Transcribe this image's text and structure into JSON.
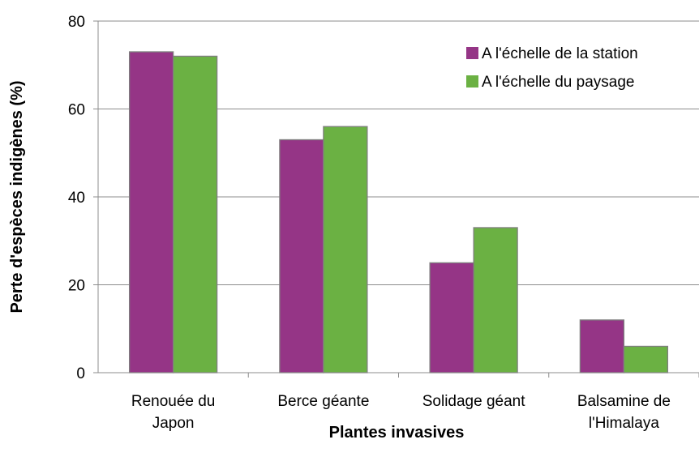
{
  "chart_data": {
    "type": "bar",
    "categories": [
      [
        "Renouée du",
        "Japon"
      ],
      [
        "Berce géante"
      ],
      [
        "Solidage géant"
      ],
      [
        "Balsamine de",
        "l'Himalaya"
      ]
    ],
    "series": [
      {
        "name": "A l'échelle de la station",
        "color": "#953586",
        "values": [
          73,
          53,
          25,
          12
        ]
      },
      {
        "name": "A l'échelle du paysage",
        "color": "#6BB143",
        "values": [
          72,
          56,
          33,
          6
        ]
      }
    ],
    "xlabel": "Plantes invasives",
    "ylabel": "Perte d'espèces indigènes (%)",
    "ylim": [
      0,
      80
    ],
    "yticks": [
      0,
      20,
      40,
      60,
      80
    ],
    "grid": true,
    "legend_position": "top-right"
  }
}
